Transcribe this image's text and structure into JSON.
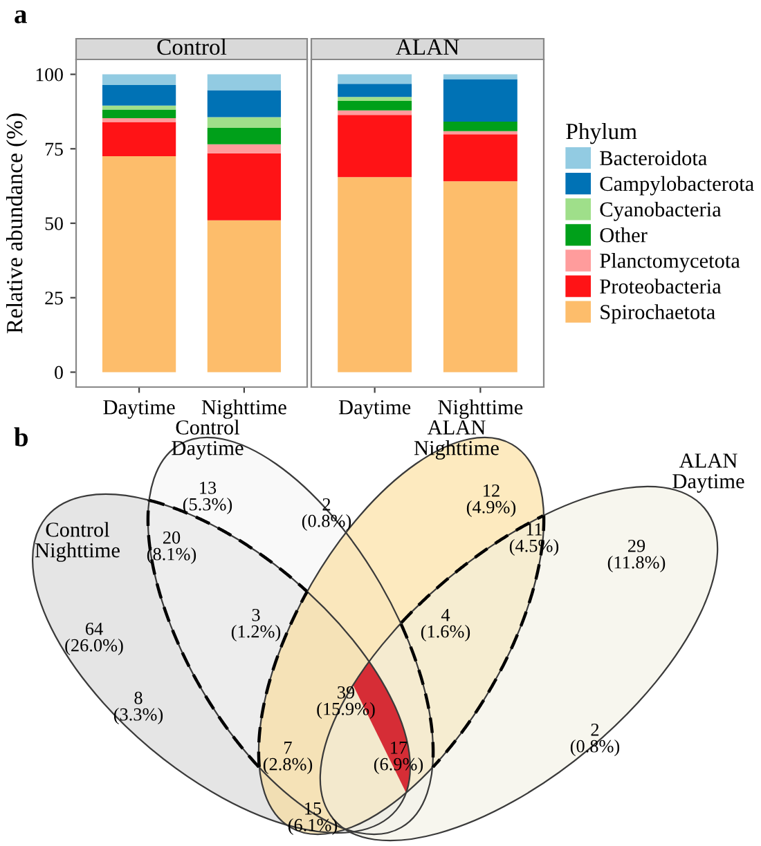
{
  "chart_data": [
    {
      "type": "bar",
      "title": "Control",
      "stacked": true,
      "categories": [
        "Daytime",
        "Nighttime"
      ],
      "ylabel": "Relative abundance (%)",
      "ylim": [
        -5,
        105
      ],
      "yticks": [
        0,
        25,
        50,
        75,
        100
      ],
      "grid": false,
      "legend": "right",
      "legend_title": "Phylum",
      "annotations": [
        "a"
      ],
      "series": [
        {
          "name": "Spirochaetota",
          "color": "#fdbd6b",
          "values": [
            72.5,
            51.0
          ]
        },
        {
          "name": "Proteobacteria",
          "color": "#ff1316",
          "values": [
            11.5,
            22.5
          ]
        },
        {
          "name": "Planctomycetota",
          "color": "#ff9c9c",
          "values": [
            1.3,
            3.0
          ]
        },
        {
          "name": "Other",
          "color": "#00a01a",
          "values": [
            2.9,
            5.5
          ]
        },
        {
          "name": "Cyanobacteria",
          "color": "#9fdf8a",
          "values": [
            1.3,
            3.6
          ]
        },
        {
          "name": "Campylobacterota",
          "color": "#0072b5",
          "values": [
            6.9,
            9.1
          ]
        },
        {
          "name": "Bacteroidota",
          "color": "#92cbe2",
          "values": [
            3.6,
            5.3
          ]
        }
      ]
    },
    {
      "type": "bar",
      "title": "ALAN",
      "stacked": true,
      "categories": [
        "Daytime",
        "Nighttime"
      ],
      "ylim": [
        -5,
        105
      ],
      "tick_labels": "x",
      "grid": false,
      "series": [
        {
          "color": "#fdbd6b",
          "values": [
            65.5,
            64.1
          ]
        },
        {
          "color": "#ff1316",
          "values": [
            20.9,
            15.8
          ]
        },
        {
          "color": "#ff9c9c",
          "values": [
            1.5,
            1.0
          ]
        },
        {
          "color": "#00a01a",
          "values": [
            3.2,
            3.2
          ]
        },
        {
          "color": "#9fdf8a",
          "values": [
            1.3,
            0
          ]
        },
        {
          "color": "#0072b5",
          "values": [
            4.4,
            14.3
          ]
        },
        {
          "color": "#92cbe2",
          "values": [
            3.2,
            1.6
          ]
        }
      ]
    },
    {
      "type": "other",
      "title": "b",
      "categories": [
        "Control\nNighttime",
        "Control\nDaytime",
        "ALAN\nNighttime",
        "ALAN\nDaytime"
      ],
      "colors": [
        "#cfcfcf",
        "#f4f4f4",
        "#fbd98a",
        "#f1efe0"
      ],
      "annotations": [
        "64\n(26.0%)",
        "13\n(5.3%)",
        "20\n(8.1%)",
        "2\n(0.8%)",
        "12\n(4.9%)",
        "11\n(4.5%)",
        "29\n(11.8%)",
        "3\n(1.2%)",
        "4\n(1.6%)",
        "39\n(15.9%)",
        "8\n(3.3%)",
        "7\n(2.8%)",
        "17\n(6.9%)",
        "2\n(0.8%)",
        "15\n(6.1%)"
      ]
    }
  ]
}
